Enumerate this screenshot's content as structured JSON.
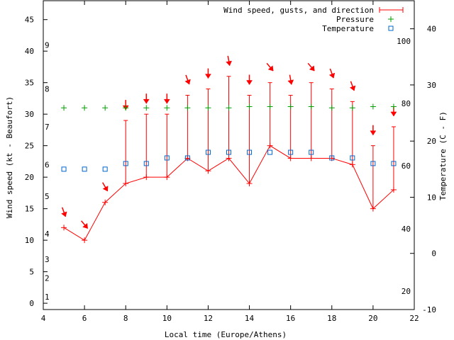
{
  "chart_data": {
    "type": "line",
    "title": "",
    "xlabel": "Local time (Europe/Athens)",
    "ylabel_left": "Wind speed (kt - Beaufort)",
    "ylabel_right": "Temperature (C - F)",
    "xlim": [
      4,
      22
    ],
    "ylim_left": [
      -1,
      48
    ],
    "ylim_right_celsius": [
      -10,
      45
    ],
    "x_ticks": [
      4,
      6,
      8,
      10,
      12,
      14,
      16,
      18,
      20,
      22
    ],
    "y_left_ticks": [
      0,
      5,
      10,
      15,
      20,
      25,
      30,
      35,
      40,
      45
    ],
    "y_right_ticks_c": [
      -10,
      0,
      10,
      20,
      30,
      40
    ],
    "beaufort_labels": [
      {
        "value": "1",
        "kt": 1
      },
      {
        "value": "2",
        "kt": 4
      },
      {
        "value": "3",
        "kt": 7
      },
      {
        "value": "4",
        "kt": 11
      },
      {
        "value": "5",
        "kt": 17
      },
      {
        "value": "6",
        "kt": 22
      },
      {
        "value": "7",
        "kt": 28
      },
      {
        "value": "8",
        "kt": 34
      },
      {
        "value": "9",
        "kt": 41
      }
    ],
    "fahrenheit_labels": [
      {
        "value": "20",
        "c": -6.7
      },
      {
        "value": "40",
        "c": 4.4
      },
      {
        "value": "60",
        "c": 15.6
      },
      {
        "value": "80",
        "c": 26.7
      },
      {
        "value": "100",
        "c": 37.8
      }
    ],
    "legend": {
      "wind": "Wind speed, gusts, and direction",
      "pressure": "Pressure",
      "temperature": "Temperature"
    },
    "series": [
      {
        "name": "Wind speed",
        "x": [
          5,
          6,
          7,
          8,
          9,
          10,
          11,
          12,
          13,
          14,
          15,
          16,
          17,
          18,
          19,
          20,
          21
        ],
        "values": [
          12,
          10,
          16,
          19,
          20,
          20,
          23,
          21,
          23,
          19,
          25,
          23,
          23,
          23,
          22,
          15,
          18
        ]
      },
      {
        "name": "Gusts",
        "x": [
          5,
          6,
          7,
          8,
          9,
          10,
          11,
          12,
          13,
          14,
          15,
          16,
          17,
          18,
          19,
          20,
          21
        ],
        "values": [
          12,
          10,
          16,
          29,
          30,
          30,
          33,
          34,
          36,
          33,
          35,
          33,
          35,
          34,
          32,
          25,
          28
        ]
      },
      {
        "name": "Wind direction (deg, arrow points downwind)",
        "x": [
          5,
          6,
          7,
          8,
          9,
          10,
          11,
          12,
          13,
          14,
          15,
          16,
          17,
          18,
          19,
          20,
          21
        ],
        "values": [
          340,
          320,
          330,
          0,
          0,
          0,
          340,
          0,
          350,
          0,
          320,
          350,
          320,
          340,
          340,
          0,
          0
        ]
      },
      {
        "name": "Pressure (plotted on wind-speed axis)",
        "x": [
          5,
          6,
          7,
          8,
          9,
          10,
          11,
          12,
          13,
          14,
          15,
          16,
          17,
          18,
          19,
          20,
          21
        ],
        "values": [
          31,
          31,
          31,
          31,
          31,
          31,
          31,
          31,
          31,
          31.2,
          31.2,
          31.2,
          31.2,
          31,
          31,
          31.2,
          31.2
        ]
      },
      {
        "name": "Temperature (C)",
        "x": [
          5,
          6,
          7,
          8,
          9,
          10,
          11,
          12,
          13,
          14,
          15,
          16,
          17,
          18,
          19,
          20,
          21
        ],
        "values": [
          15,
          15,
          15,
          16,
          16,
          17,
          17,
          18,
          18,
          18,
          18,
          18,
          18,
          17,
          17,
          16,
          16
        ]
      }
    ]
  }
}
